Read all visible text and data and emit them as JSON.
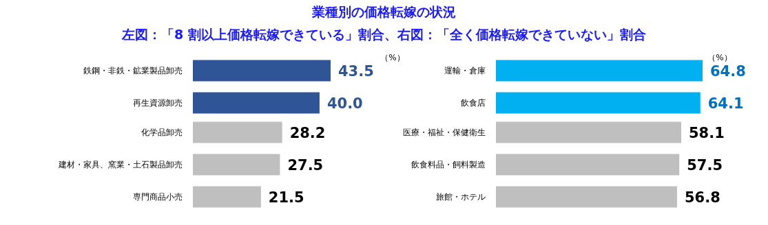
{
  "chart_data": [
    {
      "type": "bar",
      "orientation": "horizontal",
      "title": "業種別の価格転嫁の状況",
      "subtitle": "左図：「8 割以上価格転嫁できている」割合、右図：「全く価格転嫁できていない」割合",
      "categories": [
        "鉄鋼・非鉄・鉱業製品卸売",
        "再生資源卸売",
        "化学品卸売",
        "建材・家具、窯業・土石製品卸売",
        "専門商品小売"
      ],
      "values": [
        43.5,
        40.0,
        28.2,
        27.5,
        21.5
      ],
      "colors": [
        "#2f5597",
        "#2f5597",
        "#bfbfbf",
        "#bfbfbf",
        "#bfbfbf"
      ],
      "value_labels": [
        "43.5",
        "40.0",
        "28.2",
        "27.5",
        "21.5"
      ],
      "annotations": [
        "（%）"
      ]
    },
    {
      "type": "bar",
      "orientation": "horizontal",
      "categories": [
        "運輸・倉庫",
        "飲食店",
        "医療・福祉・保健衛生",
        "飲食料品・飼料製造",
        "旅館・ホテル"
      ],
      "values": [
        64.8,
        64.1,
        58.1,
        57.5,
        56.8
      ],
      "colors": [
        "#00b0f0",
        "#00b0f0",
        "#bfbfbf",
        "#bfbfbf",
        "#bfbfbf"
      ],
      "value_labels": [
        "64.8",
        "64.1",
        "58.1",
        "57.5",
        "56.8"
      ],
      "annotations": [
        "（%）"
      ]
    }
  ]
}
